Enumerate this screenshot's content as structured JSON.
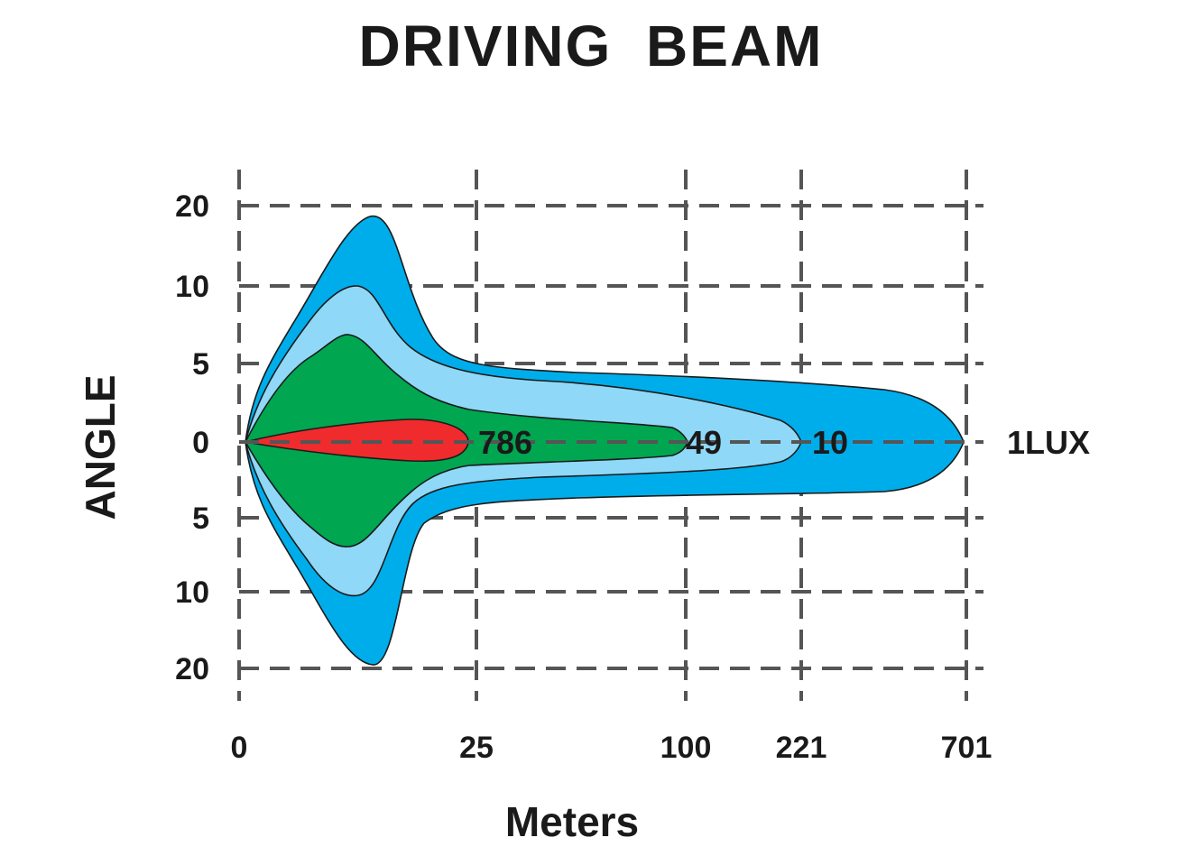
{
  "chart_data": {
    "type": "area",
    "title": "DRIVING BEAM",
    "xlabel": "Meters",
    "ylabel": "ANGLE",
    "x_ticks": [
      "0",
      "25",
      "100",
      "221",
      "701"
    ],
    "y_ticks_upper": [
      "20",
      "10",
      "5",
      "0"
    ],
    "y_ticks_lower": [
      "5",
      "10",
      "20"
    ],
    "grid": true,
    "isolux_zones": [
      {
        "label": "1LUX",
        "lux": 1,
        "distance_m": 701,
        "color": "#00adeb"
      },
      {
        "label": "10",
        "lux": 10,
        "distance_m": 221,
        "color": "#8fd8f7"
      },
      {
        "label": "49",
        "lux": 49,
        "distance_m": 100,
        "color": "#00a650"
      },
      {
        "label": "786",
        "lux": 786,
        "distance_m": 25,
        "color": "#ef2b2d"
      }
    ]
  }
}
